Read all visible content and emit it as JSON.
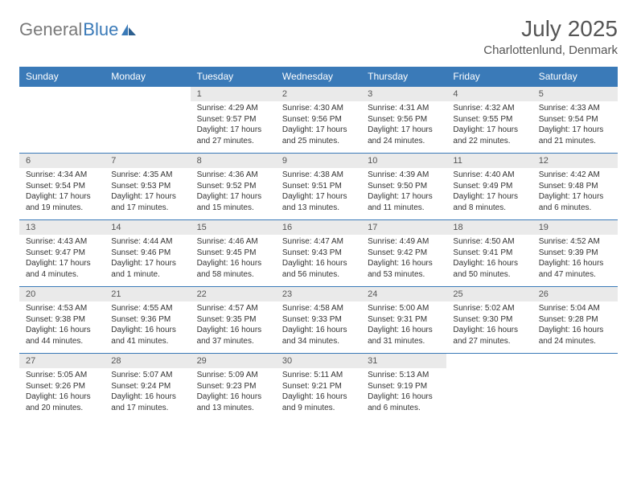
{
  "logo": {
    "text1": "General",
    "text2": "Blue"
  },
  "title": "July 2025",
  "location": "Charlottenlund, Denmark",
  "dayHeaders": [
    "Sunday",
    "Monday",
    "Tuesday",
    "Wednesday",
    "Thursday",
    "Friday",
    "Saturday"
  ],
  "colors": {
    "header_bg": "#3a7ab8",
    "header_text": "#ffffff",
    "daynum_bg": "#eaeaea",
    "text": "#333333",
    "title_text": "#555555"
  },
  "weeks": [
    {
      "nums": [
        "",
        "",
        "1",
        "2",
        "3",
        "4",
        "5"
      ],
      "cells": [
        {
          "empty": true
        },
        {
          "empty": true
        },
        {
          "sunrise": "Sunrise: 4:29 AM",
          "sunset": "Sunset: 9:57 PM",
          "daylight1": "Daylight: 17 hours",
          "daylight2": "and 27 minutes."
        },
        {
          "sunrise": "Sunrise: 4:30 AM",
          "sunset": "Sunset: 9:56 PM",
          "daylight1": "Daylight: 17 hours",
          "daylight2": "and 25 minutes."
        },
        {
          "sunrise": "Sunrise: 4:31 AM",
          "sunset": "Sunset: 9:56 PM",
          "daylight1": "Daylight: 17 hours",
          "daylight2": "and 24 minutes."
        },
        {
          "sunrise": "Sunrise: 4:32 AM",
          "sunset": "Sunset: 9:55 PM",
          "daylight1": "Daylight: 17 hours",
          "daylight2": "and 22 minutes."
        },
        {
          "sunrise": "Sunrise: 4:33 AM",
          "sunset": "Sunset: 9:54 PM",
          "daylight1": "Daylight: 17 hours",
          "daylight2": "and 21 minutes."
        }
      ]
    },
    {
      "nums": [
        "6",
        "7",
        "8",
        "9",
        "10",
        "11",
        "12"
      ],
      "cells": [
        {
          "sunrise": "Sunrise: 4:34 AM",
          "sunset": "Sunset: 9:54 PM",
          "daylight1": "Daylight: 17 hours",
          "daylight2": "and 19 minutes."
        },
        {
          "sunrise": "Sunrise: 4:35 AM",
          "sunset": "Sunset: 9:53 PM",
          "daylight1": "Daylight: 17 hours",
          "daylight2": "and 17 minutes."
        },
        {
          "sunrise": "Sunrise: 4:36 AM",
          "sunset": "Sunset: 9:52 PM",
          "daylight1": "Daylight: 17 hours",
          "daylight2": "and 15 minutes."
        },
        {
          "sunrise": "Sunrise: 4:38 AM",
          "sunset": "Sunset: 9:51 PM",
          "daylight1": "Daylight: 17 hours",
          "daylight2": "and 13 minutes."
        },
        {
          "sunrise": "Sunrise: 4:39 AM",
          "sunset": "Sunset: 9:50 PM",
          "daylight1": "Daylight: 17 hours",
          "daylight2": "and 11 minutes."
        },
        {
          "sunrise": "Sunrise: 4:40 AM",
          "sunset": "Sunset: 9:49 PM",
          "daylight1": "Daylight: 17 hours",
          "daylight2": "and 8 minutes."
        },
        {
          "sunrise": "Sunrise: 4:42 AM",
          "sunset": "Sunset: 9:48 PM",
          "daylight1": "Daylight: 17 hours",
          "daylight2": "and 6 minutes."
        }
      ]
    },
    {
      "nums": [
        "13",
        "14",
        "15",
        "16",
        "17",
        "18",
        "19"
      ],
      "cells": [
        {
          "sunrise": "Sunrise: 4:43 AM",
          "sunset": "Sunset: 9:47 PM",
          "daylight1": "Daylight: 17 hours",
          "daylight2": "and 4 minutes."
        },
        {
          "sunrise": "Sunrise: 4:44 AM",
          "sunset": "Sunset: 9:46 PM",
          "daylight1": "Daylight: 17 hours",
          "daylight2": "and 1 minute."
        },
        {
          "sunrise": "Sunrise: 4:46 AM",
          "sunset": "Sunset: 9:45 PM",
          "daylight1": "Daylight: 16 hours",
          "daylight2": "and 58 minutes."
        },
        {
          "sunrise": "Sunrise: 4:47 AM",
          "sunset": "Sunset: 9:43 PM",
          "daylight1": "Daylight: 16 hours",
          "daylight2": "and 56 minutes."
        },
        {
          "sunrise": "Sunrise: 4:49 AM",
          "sunset": "Sunset: 9:42 PM",
          "daylight1": "Daylight: 16 hours",
          "daylight2": "and 53 minutes."
        },
        {
          "sunrise": "Sunrise: 4:50 AM",
          "sunset": "Sunset: 9:41 PM",
          "daylight1": "Daylight: 16 hours",
          "daylight2": "and 50 minutes."
        },
        {
          "sunrise": "Sunrise: 4:52 AM",
          "sunset": "Sunset: 9:39 PM",
          "daylight1": "Daylight: 16 hours",
          "daylight2": "and 47 minutes."
        }
      ]
    },
    {
      "nums": [
        "20",
        "21",
        "22",
        "23",
        "24",
        "25",
        "26"
      ],
      "cells": [
        {
          "sunrise": "Sunrise: 4:53 AM",
          "sunset": "Sunset: 9:38 PM",
          "daylight1": "Daylight: 16 hours",
          "daylight2": "and 44 minutes."
        },
        {
          "sunrise": "Sunrise: 4:55 AM",
          "sunset": "Sunset: 9:36 PM",
          "daylight1": "Daylight: 16 hours",
          "daylight2": "and 41 minutes."
        },
        {
          "sunrise": "Sunrise: 4:57 AM",
          "sunset": "Sunset: 9:35 PM",
          "daylight1": "Daylight: 16 hours",
          "daylight2": "and 37 minutes."
        },
        {
          "sunrise": "Sunrise: 4:58 AM",
          "sunset": "Sunset: 9:33 PM",
          "daylight1": "Daylight: 16 hours",
          "daylight2": "and 34 minutes."
        },
        {
          "sunrise": "Sunrise: 5:00 AM",
          "sunset": "Sunset: 9:31 PM",
          "daylight1": "Daylight: 16 hours",
          "daylight2": "and 31 minutes."
        },
        {
          "sunrise": "Sunrise: 5:02 AM",
          "sunset": "Sunset: 9:30 PM",
          "daylight1": "Daylight: 16 hours",
          "daylight2": "and 27 minutes."
        },
        {
          "sunrise": "Sunrise: 5:04 AM",
          "sunset": "Sunset: 9:28 PM",
          "daylight1": "Daylight: 16 hours",
          "daylight2": "and 24 minutes."
        }
      ]
    },
    {
      "nums": [
        "27",
        "28",
        "29",
        "30",
        "31",
        "",
        ""
      ],
      "cells": [
        {
          "sunrise": "Sunrise: 5:05 AM",
          "sunset": "Sunset: 9:26 PM",
          "daylight1": "Daylight: 16 hours",
          "daylight2": "and 20 minutes."
        },
        {
          "sunrise": "Sunrise: 5:07 AM",
          "sunset": "Sunset: 9:24 PM",
          "daylight1": "Daylight: 16 hours",
          "daylight2": "and 17 minutes."
        },
        {
          "sunrise": "Sunrise: 5:09 AM",
          "sunset": "Sunset: 9:23 PM",
          "daylight1": "Daylight: 16 hours",
          "daylight2": "and 13 minutes."
        },
        {
          "sunrise": "Sunrise: 5:11 AM",
          "sunset": "Sunset: 9:21 PM",
          "daylight1": "Daylight: 16 hours",
          "daylight2": "and 9 minutes."
        },
        {
          "sunrise": "Sunrise: 5:13 AM",
          "sunset": "Sunset: 9:19 PM",
          "daylight1": "Daylight: 16 hours",
          "daylight2": "and 6 minutes."
        },
        {
          "empty": true
        },
        {
          "empty": true
        }
      ]
    }
  ]
}
